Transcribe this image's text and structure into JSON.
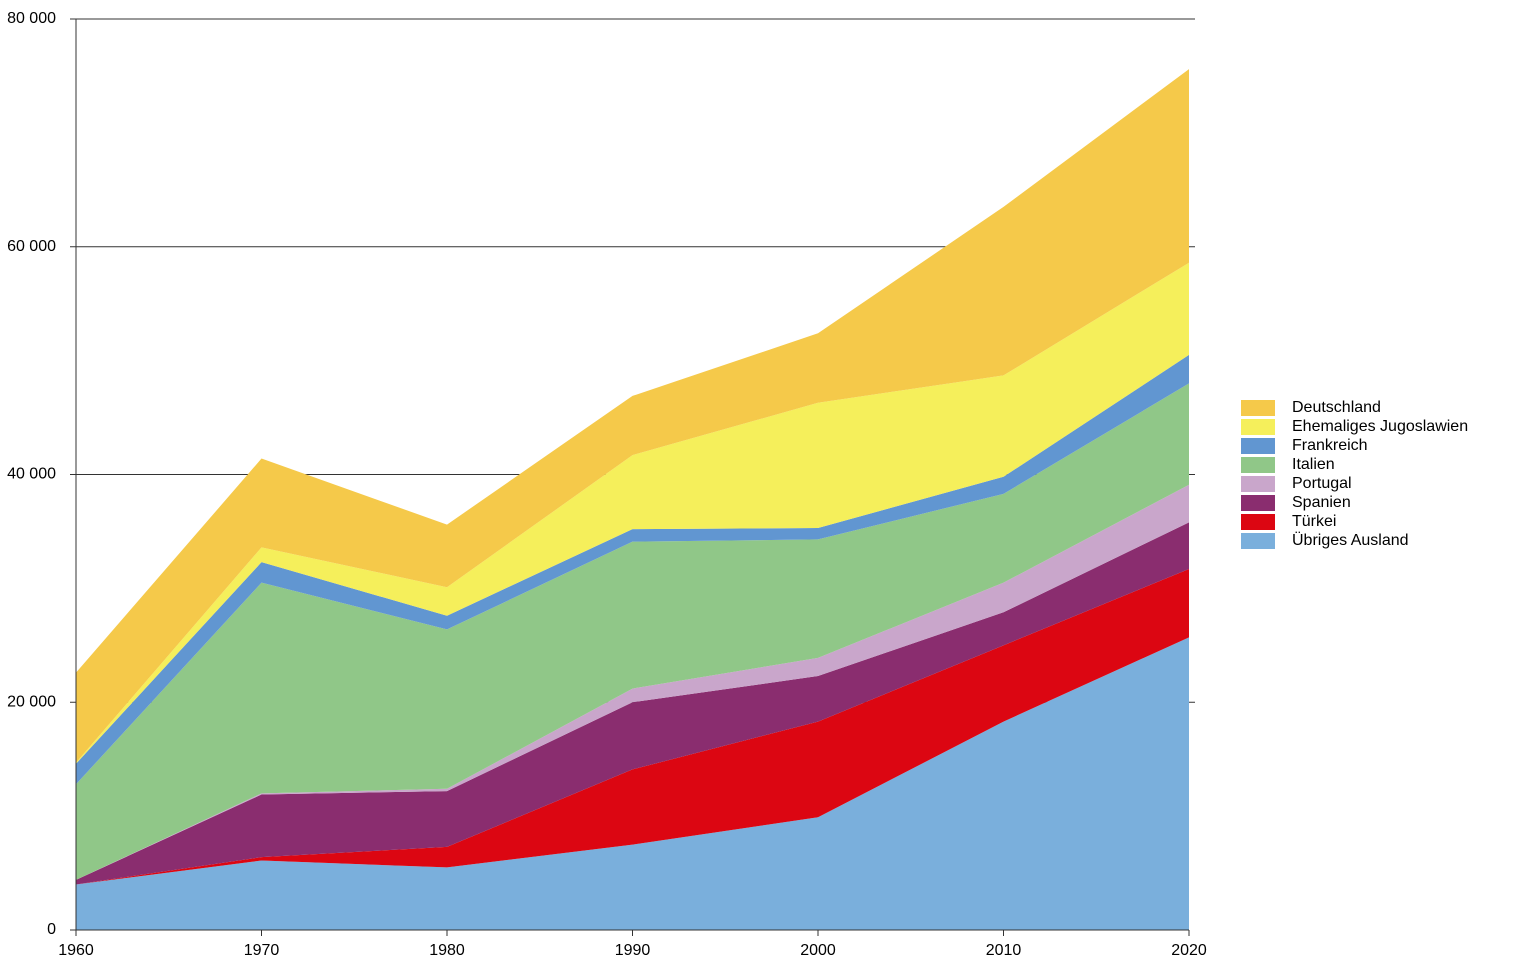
{
  "chart_data": {
    "type": "stacked-area",
    "x": [
      1960,
      1970,
      1980,
      1990,
      2000,
      2010,
      2020
    ],
    "xlim": [
      1960,
      2020
    ],
    "xticks": [
      1960,
      1970,
      1980,
      1990,
      2000,
      2010,
      2020
    ],
    "ylim": [
      0,
      80000
    ],
    "yticks": [
      {
        "value": 0,
        "label": "0"
      },
      {
        "value": 20000,
        "label": "20 000"
      },
      {
        "value": 40000,
        "label": "40 000"
      },
      {
        "value": 60000,
        "label": "60 000"
      },
      {
        "value": 80000,
        "label": "80 000"
      }
    ],
    "grid": true,
    "legend": "right",
    "series": [
      {
        "name": "Deutschland",
        "color": "#f5c94a",
        "values": [
          7900,
          7800,
          5500,
          5200,
          6100,
          14800,
          17000
        ]
      },
      {
        "name": "Ehemaliges Jugoslawien",
        "color": "#f5ef5b",
        "values": [
          100,
          1300,
          2500,
          6500,
          11000,
          8900,
          8100
        ]
      },
      {
        "name": "Frankreich",
        "color": "#6196d1",
        "values": [
          1800,
          1800,
          1200,
          1100,
          1000,
          1500,
          2500
        ]
      },
      {
        "name": "Italien",
        "color": "#90c788",
        "values": [
          8400,
          18500,
          14000,
          12900,
          10400,
          7800,
          8900
        ]
      },
      {
        "name": "Portugal",
        "color": "#c9a6cb",
        "values": [
          0,
          100,
          200,
          1200,
          1600,
          2600,
          3300
        ]
      },
      {
        "name": "Spanien",
        "color": "#8a2d6f",
        "values": [
          400,
          5500,
          4900,
          5900,
          4000,
          2900,
          4100
        ]
      },
      {
        "name": "Türkei",
        "color": "#dc0612",
        "values": [
          0,
          300,
          1800,
          6600,
          8400,
          6700,
          6000
        ]
      },
      {
        "name": "Übriges Ausland",
        "color": "#7aafdc",
        "values": [
          4000,
          6100,
          5500,
          7500,
          9900,
          18300,
          25700
        ]
      }
    ]
  }
}
